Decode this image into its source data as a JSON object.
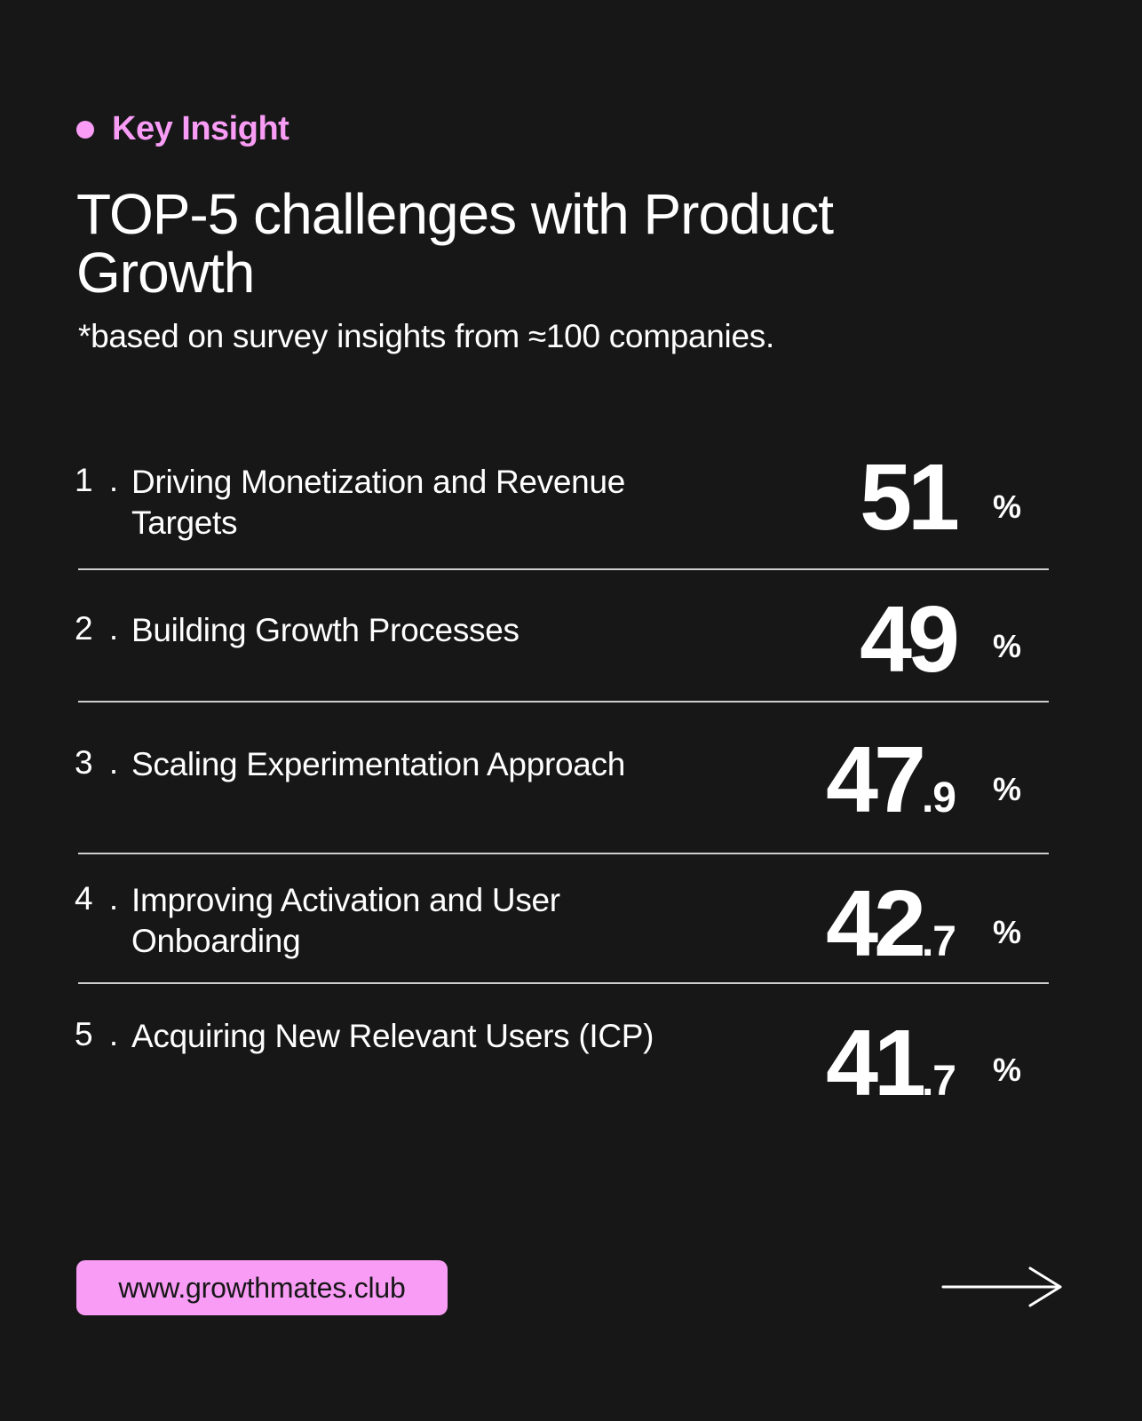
{
  "header": {
    "eyebrow": "Key Insight",
    "title": "TOP-5 challenges with Product Growth",
    "subtitle": "*based on survey insights from ≈100 companies."
  },
  "items": [
    {
      "number": "1 .",
      "label": "Driving Monetization and Revenue Targets",
      "value_int": "51",
      "value_dec": "",
      "unit": "%",
      "value": 51
    },
    {
      "number": "2 .",
      "label": "Building Growth Processes",
      "value_int": "49",
      "value_dec": "",
      "unit": "%",
      "value": 49
    },
    {
      "number": "3 .",
      "label": "Scaling Experimentation Approach",
      "value_int": "47",
      "value_dec": ".9",
      "unit": "%",
      "value": 47.9
    },
    {
      "number": "4 .",
      "label": "Improving Activation and User Onboarding",
      "value_int": "42",
      "value_dec": ".7",
      "unit": "%",
      "value": 42.7
    },
    {
      "number": "5 .",
      "label": "Acquiring New Relevant Users (ICP)",
      "value_int": "41",
      "value_dec": ".7",
      "unit": "%",
      "value": 41.7
    }
  ],
  "footer": {
    "website": "www.growthmates.club",
    "next_icon": "arrow-right-icon"
  },
  "colors": {
    "background": "#171717",
    "accent": "#f89cf5",
    "text": "#ffffff"
  }
}
